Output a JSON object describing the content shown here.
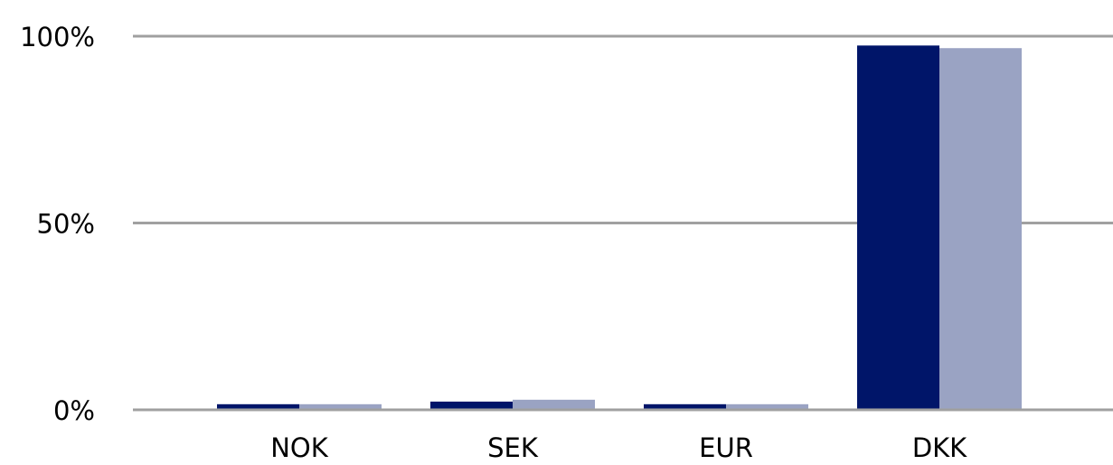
{
  "chart_data": {
    "type": "bar",
    "categories": [
      "NOK",
      "SEK",
      "EUR",
      "DKK"
    ],
    "series": [
      {
        "color": "#001569",
        "values": [
          1.5,
          2.2,
          1.5,
          97.5
        ]
      },
      {
        "color": "#9aa3c3",
        "values": [
          1.5,
          2.7,
          1.5,
          96.8
        ]
      }
    ],
    "y_ticks": [
      "0%",
      "50%",
      "100%"
    ],
    "y_tick_values": [
      0,
      50,
      100
    ],
    "ylim": [
      0,
      100
    ],
    "xlabel": "",
    "ylabel": "",
    "grid": true,
    "legend": "none"
  }
}
